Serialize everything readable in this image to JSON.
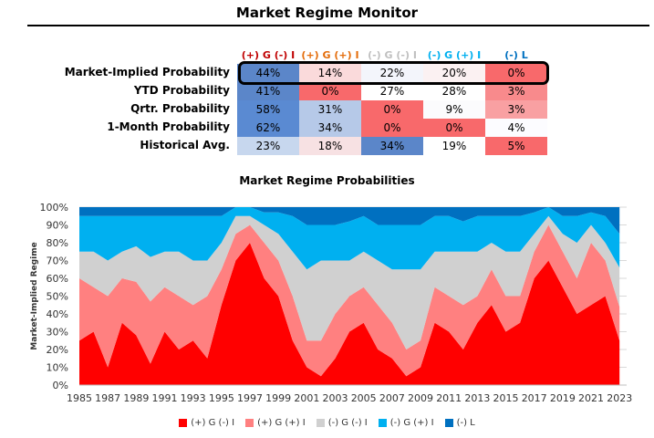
{
  "page_title": "Market Regime Monitor",
  "table": {
    "columns": [
      {
        "label": "(+) G (-) I",
        "color": "#c00000"
      },
      {
        "label": "(+) G (+) I",
        "color": "#e46c0a"
      },
      {
        "label": "(-) G (-) I",
        "color": "#bfbfbf"
      },
      {
        "label": "(-) G (+) I",
        "color": "#00b0f0"
      },
      {
        "label": "(-) L",
        "color": "#0070c0"
      }
    ],
    "rows": [
      {
        "label": "Market-Implied Probability",
        "values": [
          "44%",
          "14%",
          "22%",
          "20%",
          "0%"
        ],
        "fills": [
          "#5b86c9",
          "#fadadb",
          "#f3f5fb",
          "#fbf1f2",
          "#f8696b"
        ]
      },
      {
        "label": "YTD Probability",
        "values": [
          "41%",
          "0%",
          "27%",
          "28%",
          "3%"
        ],
        "fills": [
          "#5b86c9",
          "#f8696b",
          "#ffffff",
          "#ffffff",
          "#f88a8c"
        ]
      },
      {
        "label": "Qrtr. Probability",
        "values": [
          "58%",
          "31%",
          "0%",
          "9%",
          "3%"
        ],
        "fills": [
          "#5a8ad2",
          "#b6c9e8",
          "#f8696b",
          "#fbfbfd",
          "#f9a0a2"
        ]
      },
      {
        "label": "1-Month Probability",
        "values": [
          "62%",
          "34%",
          "0%",
          "0%",
          "4%"
        ],
        "fills": [
          "#5a8ad2",
          "#b6c9e8",
          "#f8696b",
          "#f8696b",
          "#fcfcff"
        ]
      },
      {
        "label": "Historical Avg.",
        "values": [
          "23%",
          "18%",
          "34%",
          "19%",
          "5%"
        ],
        "fills": [
          "#c7d7ee",
          "#f7e1e3",
          "#5b86c9",
          "#ffffff",
          "#f8696b"
        ]
      }
    ]
  },
  "chart_title": "Market Regime Probabilities",
  "chart_data": {
    "type": "area",
    "stacked": true,
    "normalized": true,
    "title": "Market Regime Probabilities",
    "xlabel": "",
    "ylabel": "Market-Implied Regime",
    "x": [
      1985,
      1986,
      1987,
      1988,
      1989,
      1990,
      1991,
      1992,
      1993,
      1994,
      1995,
      1996,
      1997,
      1998,
      1999,
      2000,
      2001,
      2002,
      2003,
      2004,
      2005,
      2006,
      2007,
      2008,
      2009,
      2010,
      2011,
      2012,
      2013,
      2014,
      2015,
      2016,
      2017,
      2018,
      2019,
      2020,
      2021,
      2022,
      2023
    ],
    "xticks": [
      "1985",
      "1987",
      "1989",
      "1991",
      "1993",
      "1995",
      "1997",
      "1999",
      "2001",
      "2003",
      "2005",
      "2007",
      "2009",
      "2011",
      "2013",
      "2015",
      "2017",
      "2019",
      "2021",
      "2023"
    ],
    "yticks": [
      "0%",
      "10%",
      "20%",
      "30%",
      "40%",
      "50%",
      "60%",
      "70%",
      "80%",
      "90%",
      "100%"
    ],
    "ylim": [
      0,
      100
    ],
    "grid": true,
    "legend_position": "bottom",
    "series": [
      {
        "name": "(+) G (-) I",
        "color": "#ff0000",
        "values": [
          25,
          30,
          10,
          35,
          28,
          12,
          30,
          20,
          25,
          15,
          45,
          70,
          80,
          60,
          50,
          25,
          10,
          5,
          15,
          30,
          35,
          20,
          15,
          5,
          10,
          35,
          30,
          20,
          35,
          45,
          30,
          35,
          60,
          70,
          55,
          40,
          45,
          50,
          25
        ]
      },
      {
        "name": "(+) G (+) I",
        "color": "#ff8080",
        "values": [
          35,
          25,
          40,
          25,
          30,
          35,
          25,
          30,
          20,
          35,
          20,
          15,
          10,
          20,
          20,
          25,
          15,
          20,
          25,
          20,
          20,
          25,
          20,
          15,
          15,
          20,
          20,
          25,
          15,
          20,
          20,
          15,
          15,
          20,
          20,
          20,
          35,
          20,
          19
        ]
      },
      {
        "name": "(-) G (-) I",
        "color": "#d0d0d0",
        "values": [
          15,
          20,
          20,
          15,
          20,
          25,
          20,
          25,
          25,
          20,
          15,
          10,
          5,
          10,
          15,
          25,
          40,
          45,
          30,
          20,
          20,
          25,
          30,
          45,
          40,
          20,
          25,
          30,
          25,
          15,
          25,
          25,
          10,
          5,
          10,
          20,
          10,
          10,
          22
        ]
      },
      {
        "name": "(-) G (+) I",
        "color": "#00b0f0",
        "values": [
          20,
          20,
          25,
          20,
          17,
          23,
          20,
          20,
          25,
          25,
          15,
          5,
          5,
          7,
          12,
          20,
          25,
          20,
          20,
          22,
          20,
          20,
          25,
          25,
          25,
          20,
          20,
          17,
          20,
          15,
          20,
          20,
          12,
          5,
          10,
          15,
          7,
          15,
          19
        ]
      },
      {
        "name": "(-) L",
        "color": "#0070c0",
        "values": [
          5,
          5,
          5,
          5,
          5,
          5,
          5,
          5,
          5,
          5,
          5,
          0,
          0,
          3,
          3,
          5,
          10,
          10,
          10,
          8,
          5,
          10,
          10,
          10,
          10,
          5,
          5,
          8,
          5,
          5,
          5,
          5,
          3,
          0,
          5,
          5,
          3,
          5,
          15
        ]
      }
    ]
  }
}
